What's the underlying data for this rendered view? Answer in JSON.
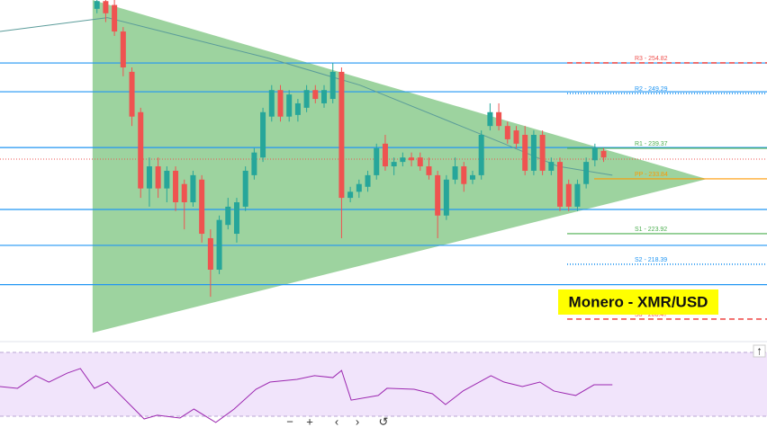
{
  "chart_data": {
    "type": "candlestick",
    "title": "Monero - XMR/USD",
    "xlim": [
      -11.1,
      76.7
    ],
    "ylim": [
      205.2,
      266.2
    ],
    "up_color": "#26a69a",
    "down_color": "#ef5350",
    "open": [
      264.6,
      266.0,
      265.3,
      260.5,
      253.2,
      245.9,
      232.1,
      236.1,
      232.1,
      235.3,
      232.9,
      229.6,
      233.7,
      223.1,
      217.4,
      225.5,
      223.9,
      228.8,
      234.5,
      237.7,
      245.1,
      249.9,
      245.1,
      245.4,
      246.7,
      249.9,
      247.5,
      248.3,
      253.2,
      230.4,
      231.5,
      232.4,
      234.5,
      240.2,
      236.1,
      236.9,
      237.7,
      237.7,
      236.1,
      234.5,
      227.2,
      233.7,
      236.1,
      233.7,
      234.5,
      243.4,
      245.9,
      243.4,
      242.6,
      241.8,
      235.3,
      241.8,
      235.3,
      236.9,
      232.9,
      228.8,
      232.9,
      237.2,
      238.9
    ],
    "close": [
      266.0,
      263.8,
      260.5,
      254.0,
      245.1,
      232.1,
      236.1,
      232.1,
      235.3,
      229.6,
      229.6,
      234.5,
      223.9,
      217.4,
      226.4,
      228.8,
      229.6,
      235.3,
      238.6,
      245.9,
      249.9,
      245.1,
      249.1,
      247.5,
      249.9,
      248.3,
      249.9,
      253.2,
      230.4,
      231.5,
      232.9,
      234.5,
      239.4,
      236.1,
      236.9,
      237.7,
      237.2,
      236.1,
      234.5,
      227.2,
      233.7,
      236.1,
      232.9,
      234.5,
      241.8,
      245.9,
      243.4,
      241.0,
      240.2,
      235.3,
      241.8,
      235.3,
      236.9,
      228.8,
      228.8,
      232.9,
      236.9,
      239.4,
      237.7
    ],
    "high": [
      266.8,
      267.0,
      266.2,
      261.3,
      254.0,
      246.7,
      237.7,
      237.7,
      236.1,
      236.1,
      233.7,
      235.3,
      234.5,
      224.7,
      227.2,
      230.4,
      230.4,
      236.1,
      239.4,
      246.7,
      250.8,
      250.8,
      249.9,
      248.3,
      250.8,
      250.8,
      250.8,
      254.8,
      254.0,
      232.4,
      233.7,
      235.3,
      240.2,
      241.8,
      237.7,
      238.6,
      238.6,
      238.6,
      237.7,
      235.3,
      234.5,
      237.7,
      236.9,
      235.3,
      242.6,
      247.5,
      247.5,
      244.2,
      243.4,
      243.4,
      242.6,
      242.6,
      237.7,
      237.7,
      233.7,
      233.7,
      237.7,
      240.2,
      239.4
    ],
    "low": [
      263.8,
      262.2,
      259.7,
      252.4,
      243.4,
      230.4,
      228.8,
      230.4,
      229.6,
      228.0,
      224.7,
      228.8,
      222.3,
      212.5,
      216.6,
      224.7,
      222.3,
      228.0,
      233.7,
      236.9,
      244.2,
      244.2,
      244.2,
      244.2,
      245.9,
      247.5,
      246.7,
      247.5,
      223.1,
      229.6,
      230.4,
      231.5,
      233.7,
      235.3,
      234.5,
      236.1,
      236.1,
      235.3,
      233.7,
      223.1,
      226.4,
      232.9,
      231.5,
      232.9,
      233.7,
      242.6,
      242.6,
      240.2,
      239.4,
      234.5,
      234.5,
      234.5,
      234.5,
      228.0,
      228.0,
      228.0,
      232.1,
      236.1,
      236.9
    ],
    "triangle": {
      "color": "#4caf50",
      "x": [
        -0.5,
        -0.5,
        69.8
      ],
      "y": [
        266.2,
        206.0,
        233.8
      ]
    },
    "moving_average": {
      "color": "#5b9c9a",
      "x": [
        -11.1,
        1.2,
        9.5,
        19.8,
        30.1,
        40.4,
        46.6,
        52.8,
        59.0
      ],
      "values": [
        260.5,
        263.0,
        259.7,
        255.6,
        250.8,
        244.2,
        240.2,
        236.1,
        234.5
      ]
    },
    "hlines": {
      "color": "#2196f3",
      "values": [
        254.8,
        249.6,
        239.5,
        228.3,
        221.8,
        214.7
      ]
    },
    "last_price": {
      "color": "#ef5350",
      "value": 237.4
    },
    "pivots": [
      {
        "label": "R3 - 254.82",
        "value": 254.82,
        "color": "#ef5350",
        "style": "dashed"
      },
      {
        "label": "R2 - 249.29",
        "value": 249.29,
        "color": "#2196f3",
        "style": "dotted"
      },
      {
        "label": "R1 - 239.37",
        "value": 239.37,
        "color": "#4caf50",
        "style": "solid"
      },
      {
        "label": "PP - 233.84",
        "value": 233.84,
        "color": "#ff9800",
        "style": "solid"
      },
      {
        "label": "S1 - 223.92",
        "value": 223.92,
        "color": "#4caf50",
        "style": "solid"
      },
      {
        "label": "S2 - 218.39",
        "value": 218.39,
        "color": "#2196f3",
        "style": "dotted"
      },
      {
        "label": "S3 - 208.47",
        "value": 208.47,
        "color": "#ef5350",
        "style": "dashed"
      }
    ],
    "rsi": {
      "color": "#9c27b0",
      "band": [
        30,
        70
      ],
      "x": [
        -11.1,
        -9.1,
        -7.0,
        -5.5,
        -3.4,
        -1.9,
        -0.3,
        1.2,
        5.4,
        6.9,
        9.5,
        11.1,
        13.6,
        15.7,
        18.2,
        19.8,
        22.9,
        24.9,
        27.0,
        28.0,
        29.1,
        32.2,
        33.2,
        36.3,
        38.4,
        39.9,
        41.9,
        45.1,
        46.6,
        48.7,
        50.7,
        52.3,
        53.8,
        54.8,
        56.9,
        59.0
      ],
      "values": [
        48.6,
        47.5,
        55.4,
        51.4,
        57.0,
        59.9,
        47.5,
        51.4,
        28.3,
        30.6,
        28.9,
        34.5,
        26.1,
        34.5,
        46.9,
        51.4,
        53.1,
        55.4,
        54.2,
        58.7,
        40.1,
        43.0,
        47.5,
        46.9,
        44.1,
        37.3,
        45.8,
        55.4,
        51.4,
        48.6,
        51.4,
        45.8,
        44.1,
        43.0,
        49.7,
        49.7
      ]
    }
  }
}
